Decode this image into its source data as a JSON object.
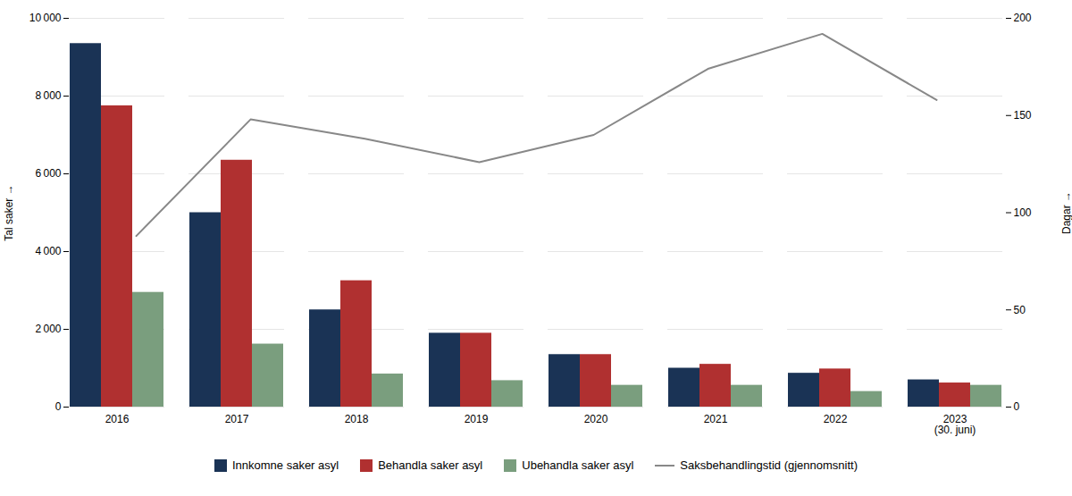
{
  "chart_data": {
    "type": "bar",
    "categories": [
      "2016",
      "2017",
      "2018",
      "2019",
      "2020",
      "2021",
      "2022",
      "2023\n(30. juni)"
    ],
    "series": [
      {
        "name": "Innkomne saker asyl",
        "color": "#1a3355",
        "values": [
          9350,
          5000,
          2500,
          1900,
          1350,
          1000,
          870,
          700
        ]
      },
      {
        "name": "Behandla saker asyl",
        "color": "#b03030",
        "values": [
          7750,
          6350,
          3250,
          1900,
          1350,
          1100,
          980,
          620
        ]
      },
      {
        "name": "Ubehandla saker asyl",
        "color": "#7a9e7e",
        "values": [
          2950,
          1620,
          850,
          680,
          560,
          560,
          400,
          560
        ]
      },
      {
        "name": "Saksbehandlingstid (gjennomsnitt)",
        "color": "#888888",
        "type": "line",
        "axis": "y2",
        "values": [
          88,
          148,
          138,
          126,
          140,
          174,
          192,
          158
        ]
      }
    ],
    "ylabel": "Tal saker",
    "y2label": "Dagar",
    "ylim": [
      0,
      10000
    ],
    "yticks": [
      0,
      {
        "value": 2000,
        "label": "2 000"
      },
      {
        "value": 4000,
        "label": "4 000"
      },
      {
        "value": 6000,
        "label": "6 000"
      },
      {
        "value": 8000,
        "label": "8 000"
      },
      {
        "value": 10000,
        "label": "10 000"
      }
    ],
    "y2lim": [
      0,
      200
    ],
    "y2ticks": [
      0,
      50,
      100,
      150,
      200
    ],
    "grid": true,
    "legend": "bottom"
  }
}
